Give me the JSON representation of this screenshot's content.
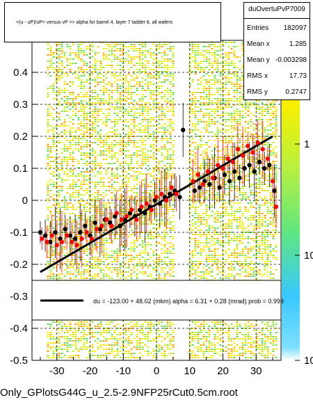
{
  "title": "<(u - uP)/uP> versus   vP => alpha for barrel 4, layer 7 ladder 8, all wafers",
  "footer_text": "Only_GPlotsG44G_u_2.5-2.9NFP25rCut0.5cm.root",
  "stats": {
    "name": "duOvertuPvP7009",
    "rows": [
      {
        "key": "Entries",
        "value": "182097"
      },
      {
        "key": "Mean x",
        "value": "1.285"
      },
      {
        "key": "Mean y",
        "value": "-0.003298"
      },
      {
        "key": "RMS x",
        "value": "17.73"
      },
      {
        "key": "RMS y",
        "value": "0.2747"
      }
    ]
  },
  "fit_legend": "du = -123.00 +  48.02 (mkm) alpha =    6.31 +   0.28 (mrad) prob = 0.998",
  "colors": {
    "black_points": "#000000",
    "red_points": "#ff0000",
    "fit_line": "#000000",
    "grid": "#000000"
  },
  "chart_data": {
    "type": "scatter",
    "xlim": [
      -37.5,
      37.5
    ],
    "ylim": [
      -0.5,
      0.5
    ],
    "x_ticks": [
      -30,
      -20,
      -10,
      0,
      10,
      20,
      30
    ],
    "y_ticks": [
      -0.5,
      -0.4,
      -0.3,
      -0.2,
      -0.1,
      0,
      0.1,
      0.2,
      0.3,
      0.4
    ],
    "y_tick_labels": [
      "-0.5",
      "-0.4",
      "-0.3",
      "-0.2",
      "-0.1",
      "0",
      "0.1",
      "0.2",
      "0.3",
      "0.4"
    ],
    "grid": true,
    "colorbar": {
      "scale": "log",
      "labels": [
        "1",
        "10",
        "10"
      ]
    },
    "fit_line": {
      "x": [
        -35,
        35
      ],
      "y": [
        -0.224,
        0.2
      ]
    },
    "series": [
      {
        "color": "black",
        "points": [
          [
            -35,
            -0.1
          ],
          [
            -33.5,
            -0.11
          ],
          [
            -32,
            -0.13
          ],
          [
            -30.5,
            -0.1
          ],
          [
            -29,
            -0.12
          ],
          [
            -27.5,
            -0.09
          ],
          [
            -26,
            -0.11
          ],
          [
            -24.5,
            -0.12
          ],
          [
            -23,
            -0.1
          ],
          [
            -21.5,
            -0.08
          ],
          [
            -20,
            -0.11
          ],
          [
            -18.5,
            -0.07
          ],
          [
            -17,
            -0.09
          ],
          [
            -15.5,
            -0.06
          ],
          [
            -14,
            -0.07
          ],
          [
            -12.5,
            -0.05
          ],
          [
            -11,
            -0.08
          ],
          [
            -9.5,
            -0.06
          ],
          [
            -8,
            -0.04
          ],
          [
            -6.5,
            -0.05
          ],
          [
            -5,
            -0.03
          ],
          [
            -3.5,
            -0.04
          ],
          [
            -2,
            -0.02
          ],
          [
            -0.5,
            0.0
          ],
          [
            1,
            -0.01
          ],
          [
            2.5,
            0.01
          ],
          [
            4,
            0.02
          ],
          [
            5.5,
            0.03
          ],
          [
            7,
            0.01
          ],
          [
            8,
            0.22
          ],
          [
            11.5,
            0.03
          ],
          [
            13,
            0.04
          ],
          [
            14.5,
            0.06
          ],
          [
            16,
            0.05
          ],
          [
            17.5,
            0.07
          ],
          [
            19,
            0.04
          ],
          [
            20.5,
            0.08
          ],
          [
            22,
            0.06
          ],
          [
            23.5,
            0.09
          ],
          [
            25,
            0.07
          ],
          [
            26.5,
            0.1
          ],
          [
            28,
            0.11
          ],
          [
            29.5,
            0.09
          ],
          [
            31,
            0.12
          ],
          [
            32.5,
            0.1
          ],
          [
            34,
            0.11
          ],
          [
            35.5,
            0.03
          ]
        ]
      },
      {
        "color": "red",
        "points": [
          [
            -34.5,
            -0.12
          ],
          [
            -33,
            -0.13
          ],
          [
            -31.5,
            -0.11
          ],
          [
            -30,
            -0.14
          ],
          [
            -28.5,
            -0.13
          ],
          [
            -27,
            -0.11
          ],
          [
            -25.5,
            -0.13
          ],
          [
            -24,
            -0.14
          ],
          [
            -22.5,
            -0.12
          ],
          [
            -21,
            -0.1
          ],
          [
            -19.5,
            -0.12
          ],
          [
            -18,
            -0.09
          ],
          [
            -16.5,
            -0.08
          ],
          [
            -15,
            -0.06
          ],
          [
            -13.5,
            -0.08
          ],
          [
            -12,
            -0.04
          ],
          [
            -10.5,
            -0.06
          ],
          [
            -9,
            -0.05
          ],
          [
            -7.5,
            -0.03
          ],
          [
            -6,
            -0.06
          ],
          [
            -4.5,
            -0.02
          ],
          [
            -3,
            -0.01
          ],
          [
            -1.5,
            -0.03
          ],
          [
            0,
            0.01
          ],
          [
            1.5,
            0.02
          ],
          [
            3,
            0.0
          ],
          [
            4.5,
            0.04
          ],
          [
            6,
            0.02
          ],
          [
            11,
            0.06
          ],
          [
            12.5,
            0.08
          ],
          [
            14,
            0.05
          ],
          [
            15.5,
            0.09
          ],
          [
            17,
            0.07
          ],
          [
            18.5,
            0.11
          ],
          [
            20,
            0.1
          ],
          [
            21.5,
            0.13
          ],
          [
            23,
            0.12
          ],
          [
            24.5,
            0.16
          ],
          [
            26,
            0.14
          ],
          [
            27.5,
            0.17
          ],
          [
            29,
            0.15
          ],
          [
            30.5,
            0.18
          ],
          [
            32,
            0.16
          ],
          [
            33.5,
            0.13
          ],
          [
            35,
            0.06
          ],
          [
            36,
            -0.02
          ]
        ]
      }
    ]
  }
}
